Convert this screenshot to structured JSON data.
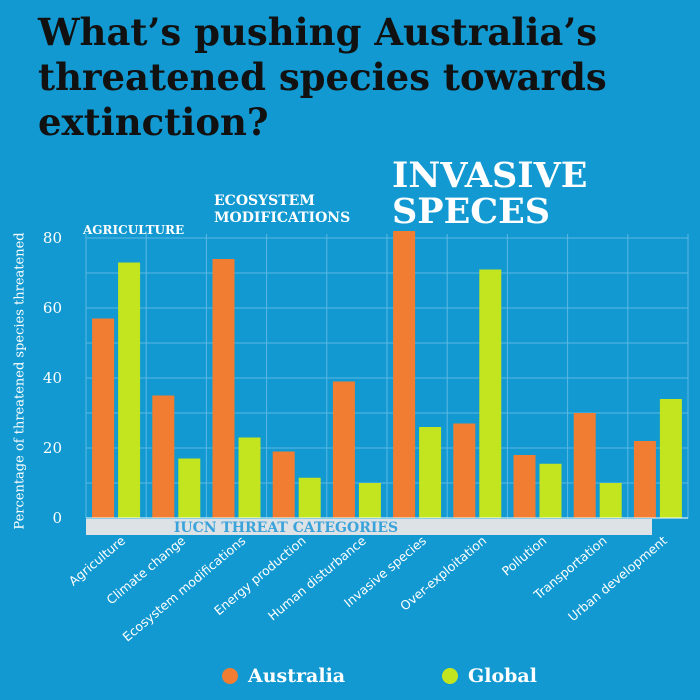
{
  "title": "What’s pushing Australia’s threatened species towards extinction?",
  "annotations": {
    "agriculture": "AGRICULTURE",
    "ecosystem": "ECOSYSTEM\nMODIFICATIONS",
    "invasive": "INVASIVE\nSPECES"
  },
  "colors": {
    "background": "#1299d1",
    "australia": "#f07d32",
    "global": "#c2e51f",
    "grid": "#5cb8e4",
    "band": "#dde2e6"
  },
  "chart_data": {
    "type": "bar",
    "title": "What’s pushing Australia’s threatened species towards extinction?",
    "xlabel": "IUCN THREAT CATEGORIES",
    "ylabel": "Percentage of threatened species threatened",
    "ylim": [
      0,
      80
    ],
    "yticks": [
      0,
      20,
      40,
      60,
      80
    ],
    "grid": true,
    "legend_position": "bottom",
    "categories": [
      "Agriculture",
      "Climate change",
      "Ecosystem modifications",
      "Energy production",
      "Human disturbance",
      "Invasive species",
      "Over-exploitation",
      "Pollution",
      "Transportation",
      "Urban development"
    ],
    "series": [
      {
        "name": "Australia",
        "color": "#f07d32",
        "values": [
          57,
          35,
          74,
          19,
          39,
          82,
          27,
          18,
          30,
          22
        ]
      },
      {
        "name": "Global",
        "color": "#c2e51f",
        "values": [
          73,
          17,
          23,
          11.5,
          10,
          26,
          71,
          15.5,
          10,
          34
        ]
      }
    ]
  }
}
